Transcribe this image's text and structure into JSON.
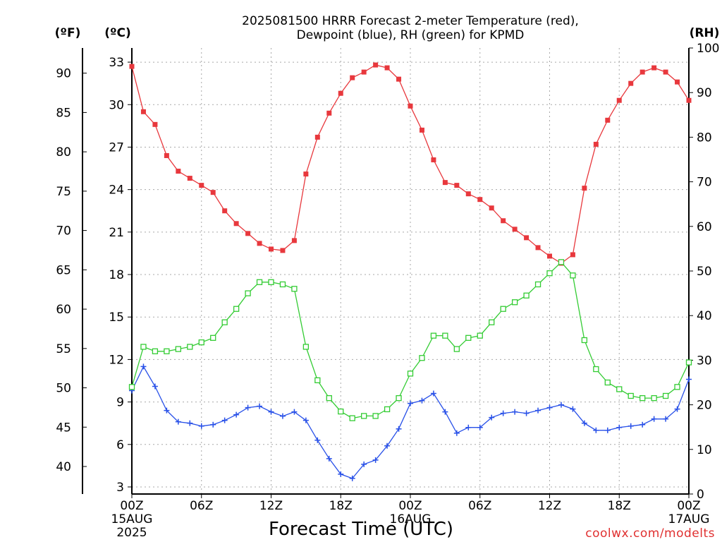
{
  "chart_data": {
    "type": "line",
    "title": [
      "2025081500 HRRR Forecast 2-meter Temperature (red),",
      "Dewpoint (blue), RH (green) for KPMD"
    ],
    "xlabel": "Forecast Time (UTC)",
    "credit": "coolwx.com/modelts",
    "units": {
      "left_outer": "(ºF)",
      "left_inner": "(ºC)",
      "right": "(RH)"
    },
    "hours": [
      0,
      1,
      2,
      3,
      4,
      5,
      6,
      7,
      8,
      9,
      10,
      11,
      12,
      13,
      14,
      15,
      16,
      17,
      18,
      19,
      20,
      21,
      22,
      23,
      24,
      25,
      26,
      27,
      28,
      29,
      30,
      31,
      32,
      33,
      34,
      35,
      36,
      37,
      38,
      39,
      40,
      41,
      42,
      43,
      44,
      45,
      46,
      47,
      48
    ],
    "x_ticks": [
      {
        "hour": 0,
        "lines": [
          "00Z",
          "15AUG",
          "2025"
        ]
      },
      {
        "hour": 6,
        "lines": [
          "06Z"
        ]
      },
      {
        "hour": 12,
        "lines": [
          "12Z"
        ]
      },
      {
        "hour": 18,
        "lines": [
          "18Z"
        ]
      },
      {
        "hour": 24,
        "lines": [
          "00Z",
          "16AUG"
        ]
      },
      {
        "hour": 30,
        "lines": [
          "06Z"
        ]
      },
      {
        "hour": 36,
        "lines": [
          "12Z"
        ]
      },
      {
        "hour": 42,
        "lines": [
          "18Z"
        ]
      },
      {
        "hour": 48,
        "lines": [
          "00Z",
          "17AUG"
        ]
      }
    ],
    "celsius_axis": {
      "range": [
        2.5,
        34
      ],
      "ticks": [
        3,
        6,
        9,
        12,
        15,
        18,
        21,
        24,
        27,
        30,
        33
      ]
    },
    "fahrenheit_ticks": [
      40,
      45,
      50,
      55,
      60,
      65,
      70,
      75,
      80,
      85,
      90
    ],
    "rh_axis": {
      "range": [
        0,
        100
      ],
      "ticks": [
        0,
        10,
        20,
        30,
        40,
        50,
        60,
        70,
        80,
        90,
        100
      ]
    },
    "grid": true,
    "series": [
      {
        "name": "Temperature",
        "unit": "C",
        "color": "#e8383d",
        "marker": "filled-square",
        "values": [
          32.7,
          29.5,
          28.6,
          26.4,
          25.3,
          24.8,
          24.3,
          23.8,
          22.5,
          21.6,
          20.9,
          20.2,
          19.8,
          19.7,
          20.4,
          25.1,
          27.7,
          29.4,
          30.8,
          31.9,
          32.3,
          32.8,
          32.6,
          31.8,
          29.9,
          28.2,
          26.1,
          24.5,
          24.3,
          23.7,
          23.3,
          22.7,
          21.8,
          21.2,
          20.6,
          19.9,
          19.3,
          18.8,
          19.4,
          24.1,
          27.2,
          28.9,
          30.3,
          31.5,
          32.3,
          32.6,
          32.3,
          31.6,
          30.3
        ]
      },
      {
        "name": "Dewpoint",
        "unit": "C",
        "color": "#2850e8",
        "marker": "plus",
        "values": [
          9.8,
          11.5,
          10.1,
          8.4,
          7.6,
          7.5,
          7.3,
          7.4,
          7.7,
          8.1,
          8.6,
          8.7,
          8.3,
          8.0,
          8.3,
          7.7,
          6.3,
          5.0,
          3.9,
          3.6,
          4.6,
          4.9,
          5.9,
          7.1,
          8.9,
          9.1,
          9.6,
          8.3,
          6.8,
          7.2,
          7.2,
          7.9,
          8.2,
          8.3,
          8.2,
          8.4,
          8.6,
          8.8,
          8.5,
          7.5,
          7.0,
          7.0,
          7.2,
          7.3,
          7.4,
          7.8,
          7.8,
          8.5,
          10.6
        ]
      },
      {
        "name": "RH",
        "unit": "%",
        "color": "#33cc33",
        "marker": "open-square",
        "values": [
          24,
          33,
          32,
          32,
          32.5,
          33,
          34,
          35,
          38.5,
          41.5,
          45,
          47.5,
          47.5,
          47,
          46,
          33,
          25.5,
          21.5,
          18.5,
          17,
          17.5,
          17.5,
          19,
          21.5,
          27,
          30.5,
          35.5,
          35.5,
          32.5,
          35,
          35.5,
          38.5,
          41.5,
          43,
          44.5,
          47,
          49.5,
          52,
          49,
          34.5,
          28,
          25,
          23.5,
          22,
          21.5,
          21.5,
          22,
          24,
          29.5
        ]
      }
    ]
  }
}
